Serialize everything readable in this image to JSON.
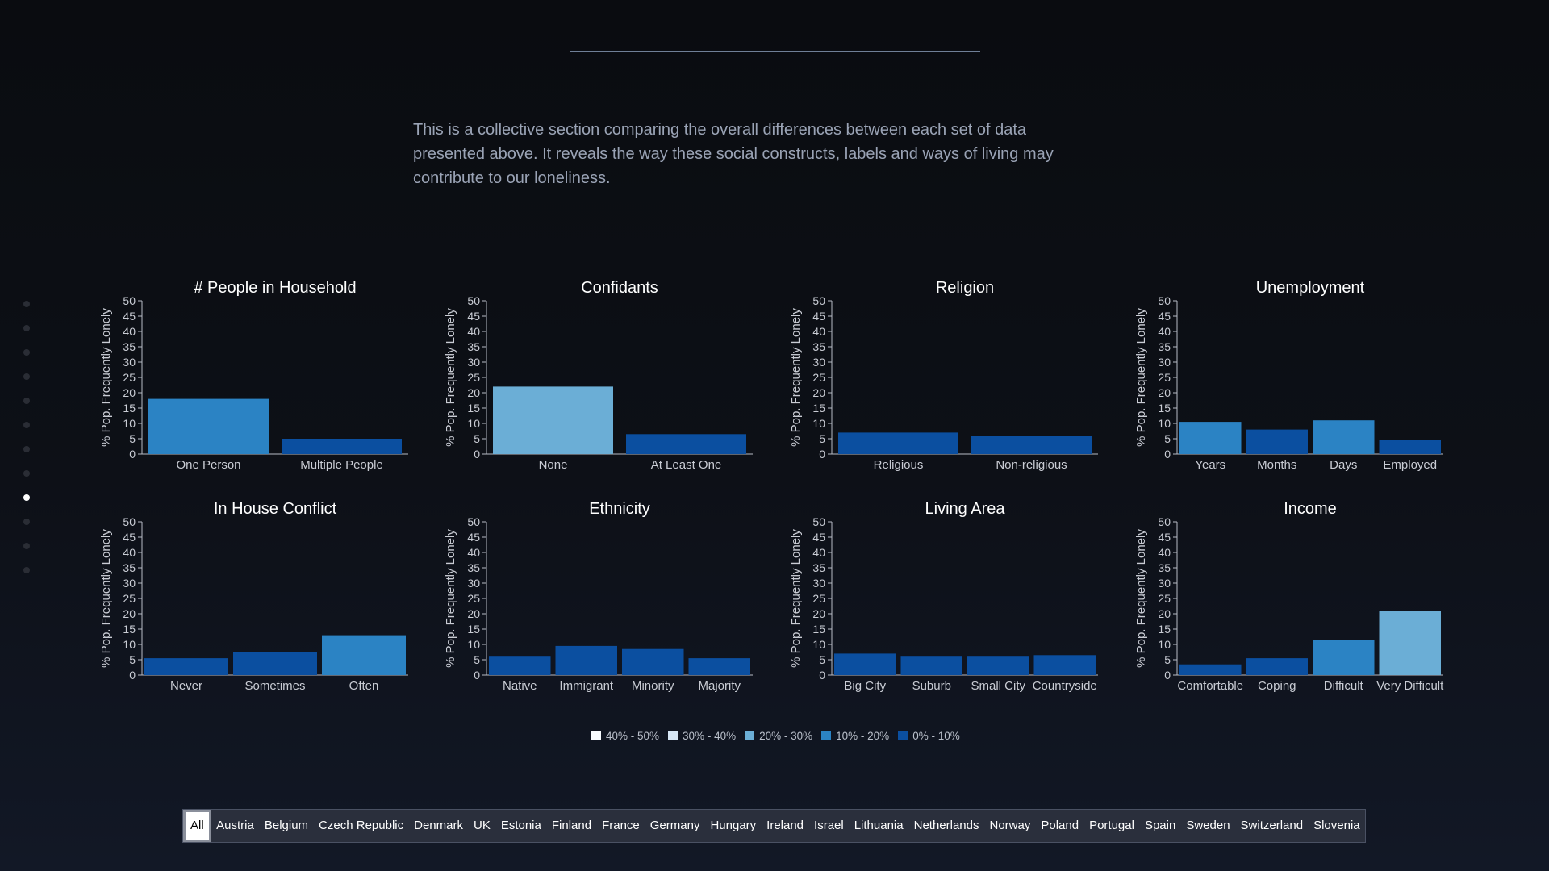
{
  "intro_text": "This is a collective section comparing the overall differences between each set of data presented above. It reveals the way these social constructs, labels and ways of living may contribute to our loneliness.",
  "nav": {
    "dots": 12,
    "active_index": 8
  },
  "colors": {
    "band_0_10": "#0b4fa0",
    "band_10_20": "#2b83c4",
    "band_20_30": "#6baed6",
    "band_30_40": "#d6e6f5",
    "band_40_50": "#f7fbff"
  },
  "chart_data": [
    {
      "type": "bar",
      "title": "# People in Household",
      "ylabel": "% Pop. Frequently Lonely",
      "ylim": [
        0,
        50
      ],
      "yticks": [
        0,
        5,
        10,
        15,
        20,
        25,
        30,
        35,
        40,
        45,
        50
      ],
      "categories": [
        "One Person",
        "Multiple People"
      ],
      "values": [
        18,
        5
      ]
    },
    {
      "type": "bar",
      "title": "Confidants",
      "ylabel": "% Pop. Frequently Lonely",
      "ylim": [
        0,
        50
      ],
      "yticks": [
        0,
        5,
        10,
        15,
        20,
        25,
        30,
        35,
        40,
        45,
        50
      ],
      "categories": [
        "None",
        "At Least One"
      ],
      "values": [
        22,
        6.5
      ]
    },
    {
      "type": "bar",
      "title": "Religion",
      "ylabel": "% Pop. Frequently Lonely",
      "ylim": [
        0,
        50
      ],
      "yticks": [
        0,
        5,
        10,
        15,
        20,
        25,
        30,
        35,
        40,
        45,
        50
      ],
      "categories": [
        "Religious",
        "Non-religious"
      ],
      "values": [
        7,
        6
      ]
    },
    {
      "type": "bar",
      "title": "Unemployment",
      "ylabel": "% Pop. Frequently Lonely",
      "ylim": [
        0,
        50
      ],
      "yticks": [
        0,
        5,
        10,
        15,
        20,
        25,
        30,
        35,
        40,
        45,
        50
      ],
      "categories": [
        "Years",
        "Months",
        "Days",
        "Employed"
      ],
      "values": [
        10.5,
        8,
        11,
        4.5
      ]
    },
    {
      "type": "bar",
      "title": "In House Conflict",
      "ylabel": "% Pop. Frequently Lonely",
      "ylim": [
        0,
        50
      ],
      "yticks": [
        0,
        5,
        10,
        15,
        20,
        25,
        30,
        35,
        40,
        45,
        50
      ],
      "categories": [
        "Never",
        "Sometimes",
        "Often"
      ],
      "values": [
        5.5,
        7.5,
        13
      ]
    },
    {
      "type": "bar",
      "title": "Ethnicity",
      "ylabel": "% Pop. Frequently Lonely",
      "ylim": [
        0,
        50
      ],
      "yticks": [
        0,
        5,
        10,
        15,
        20,
        25,
        30,
        35,
        40,
        45,
        50
      ],
      "categories": [
        "Native",
        "Immigrant",
        "Minority",
        "Majority"
      ],
      "values": [
        6,
        9.5,
        8.5,
        5.5
      ]
    },
    {
      "type": "bar",
      "title": "Living Area",
      "ylabel": "% Pop. Frequently Lonely",
      "ylim": [
        0,
        50
      ],
      "yticks": [
        0,
        5,
        10,
        15,
        20,
        25,
        30,
        35,
        40,
        45,
        50
      ],
      "categories": [
        "Big City",
        "Suburb",
        "Small City",
        "Countryside"
      ],
      "values": [
        7,
        6,
        6,
        6.5
      ]
    },
    {
      "type": "bar",
      "title": "Income",
      "ylabel": "% Pop. Frequently Lonely",
      "ylim": [
        0,
        50
      ],
      "yticks": [
        0,
        5,
        10,
        15,
        20,
        25,
        30,
        35,
        40,
        45,
        50
      ],
      "categories": [
        "Comfortable",
        "Coping",
        "Difficult",
        "Very Difficult"
      ],
      "values": [
        3.5,
        5.5,
        11.5,
        21
      ]
    }
  ],
  "legend": [
    {
      "label": "40% - 50%",
      "color": "#f7fbff"
    },
    {
      "label": "30% - 40%",
      "color": "#d6e6f5"
    },
    {
      "label": "20% - 30%",
      "color": "#6baed6"
    },
    {
      "label": "10% - 20%",
      "color": "#2b83c4"
    },
    {
      "label": "0% - 10%",
      "color": "#0b4fa0"
    }
  ],
  "countries": [
    "All",
    "Austria",
    "Belgium",
    "Czech Republic",
    "Denmark",
    "UK",
    "Estonia",
    "Finland",
    "France",
    "Germany",
    "Hungary",
    "Ireland",
    "Israel",
    "Lithuania",
    "Netherlands",
    "Norway",
    "Poland",
    "Portugal",
    "Spain",
    "Sweden",
    "Switzerland",
    "Slovenia"
  ],
  "selected_country": "All"
}
